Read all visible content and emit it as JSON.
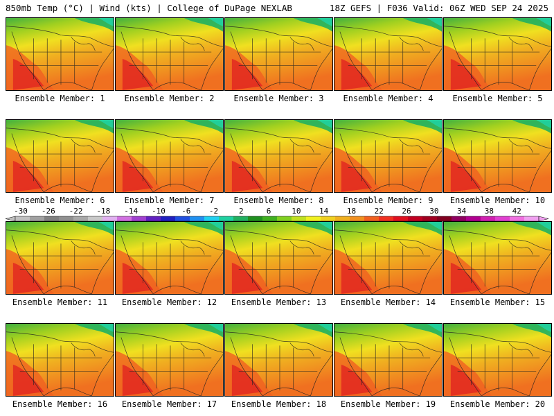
{
  "header": {
    "left": "850mb Temp (°C) | Wind (kts) | College of DuPage NEXLAB",
    "right": "18Z GEFS | F036 Valid: 06Z WED SEP 24 2025"
  },
  "members": [
    "Ensemble Member: 1",
    "Ensemble Member: 2",
    "Ensemble Member: 3",
    "Ensemble Member: 4",
    "Ensemble Member: 5",
    "Ensemble Member: 6",
    "Ensemble Member: 7",
    "Ensemble Member: 8",
    "Ensemble Member: 9",
    "Ensemble Member: 10",
    "Ensemble Member: 11",
    "Ensemble Member: 12",
    "Ensemble Member: 13",
    "Ensemble Member: 14",
    "Ensemble Member: 15",
    "Ensemble Member: 16",
    "Ensemble Member: 17",
    "Ensemble Member: 18",
    "Ensemble Member: 19",
    "Ensemble Member: 20"
  ],
  "colorbar": {
    "tick_labels": [
      "-30",
      "-26",
      "-22",
      "-18",
      "-14",
      "-10",
      "-6",
      "-2",
      "2",
      "6",
      "10",
      "14",
      "18",
      "22",
      "26",
      "30",
      "34",
      "38",
      "42"
    ],
    "colors": [
      "#c0c0c0",
      "#a0a0a0",
      "#808080",
      "#909090",
      "#a8a8a8",
      "#c8c8c8",
      "#e0b0f0",
      "#d070e0",
      "#a040d0",
      "#6020c0",
      "#2020c0",
      "#2050e0",
      "#2090f0",
      "#20d0f0",
      "#20d0a0",
      "#20b060",
      "#209020",
      "#40b020",
      "#80d020",
      "#c0e020",
      "#f0f020",
      "#f0d020",
      "#f0b020",
      "#f09020",
      "#f06020",
      "#f03020",
      "#e01020",
      "#c00020",
      "#a00020",
      "#800020",
      "#900060",
      "#b00090",
      "#d020b0",
      "#e040d0",
      "#f070e0",
      "#f0a0f0"
    ]
  }
}
